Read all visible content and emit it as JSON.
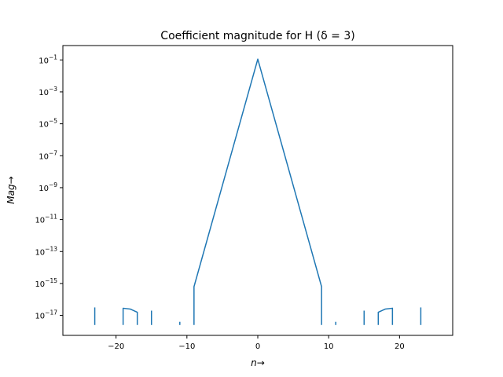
{
  "chart_data": {
    "type": "line",
    "title": "Coefficient magnitude for H (δ = 3)",
    "xlabel": "n→",
    "ylabel": "Mag→",
    "xlim": [
      -27.5,
      27.5
    ],
    "ylim_exponent": [
      -18.25,
      -0.1
    ],
    "y_scale": "log",
    "grid": false,
    "x_ticks": [
      {
        "value": -20,
        "label": "−20"
      },
      {
        "value": -10,
        "label": "−10"
      },
      {
        "value": 0,
        "label": "0"
      },
      {
        "value": 10,
        "label": "10"
      },
      {
        "value": 20,
        "label": "20"
      }
    ],
    "y_ticks": [
      {
        "exp": -1,
        "base": "10",
        "sup": "−1"
      },
      {
        "exp": -3,
        "base": "10",
        "sup": "−3"
      },
      {
        "exp": -5,
        "base": "10",
        "sup": "−5"
      },
      {
        "exp": -7,
        "base": "10",
        "sup": "−7"
      },
      {
        "exp": -9,
        "base": "10",
        "sup": "−9"
      },
      {
        "exp": -11,
        "base": "10",
        "sup": "−11"
      },
      {
        "exp": -13,
        "base": "10",
        "sup": "−13"
      },
      {
        "exp": -15,
        "base": "10",
        "sup": "−15"
      },
      {
        "exp": -17,
        "base": "10",
        "sup": "−17"
      }
    ],
    "series": [
      {
        "color": "#1f77b4",
        "segments": [
          {
            "x": [
              -23,
              -23
            ],
            "log10_y": [
              -17.6,
              -16.5
            ]
          },
          {
            "x": [
              -19,
              -19,
              -18,
              -17,
              -17
            ],
            "log10_y": [
              -17.6,
              -16.55,
              -16.6,
              -16.8,
              -17.6
            ]
          },
          {
            "x": [
              -15,
              -15
            ],
            "log10_y": [
              -17.6,
              -16.7
            ]
          },
          {
            "x": [
              -11,
              -11
            ],
            "log10_y": [
              -17.6,
              -17.4
            ]
          },
          {
            "x": [
              -9,
              -9,
              0,
              9,
              9
            ],
            "log10_y": [
              -17.6,
              -15.2,
              -0.95,
              -15.2,
              -17.6
            ]
          },
          {
            "x": [
              11,
              11
            ],
            "log10_y": [
              -17.6,
              -17.4
            ]
          },
          {
            "x": [
              15,
              15
            ],
            "log10_y": [
              -17.6,
              -16.7
            ]
          },
          {
            "x": [
              17,
              17,
              18,
              19,
              19
            ],
            "log10_y": [
              -17.6,
              -16.8,
              -16.6,
              -16.55,
              -17.6
            ]
          },
          {
            "x": [
              23,
              23
            ],
            "log10_y": [
              -17.6,
              -16.5
            ]
          }
        ]
      }
    ]
  }
}
